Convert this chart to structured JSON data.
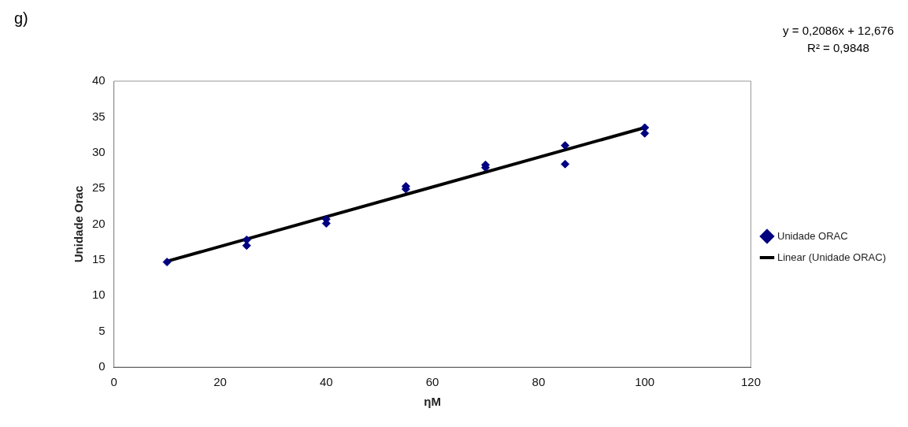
{
  "chart_data": {
    "type": "scatter",
    "xlabel": "ηM",
    "ylabel": "Unidade Orac",
    "annotations": [
      "g)",
      "y = 0,2086x + 12,676",
      "R² = 0,9848"
    ],
    "xlim": [
      0,
      120
    ],
    "xticks": [
      0,
      20,
      40,
      60,
      80,
      100,
      120
    ],
    "ylim": [
      0,
      40
    ],
    "yticks": [
      0,
      5,
      10,
      15,
      20,
      25,
      30,
      35,
      40
    ],
    "grid": false,
    "legend": "right",
    "marker": "diamond",
    "series": [
      {
        "name": "Unidade ORAC",
        "color": "#000080",
        "x": [
          10,
          25,
          25,
          40,
          40,
          55,
          55,
          70,
          70,
          85,
          85,
          100,
          100
        ],
        "values": [
          14.7,
          17.8,
          17.0,
          20.7,
          20.1,
          25.3,
          24.9,
          28.3,
          27.9,
          31.0,
          28.4,
          33.5,
          32.7
        ]
      },
      {
        "name": "Linear (Unidade ORAC)",
        "type": "line",
        "color": "#000000",
        "x": [
          10,
          100
        ],
        "values": [
          14.8,
          33.5
        ],
        "line_style": "solid",
        "marker": "none"
      }
    ]
  }
}
